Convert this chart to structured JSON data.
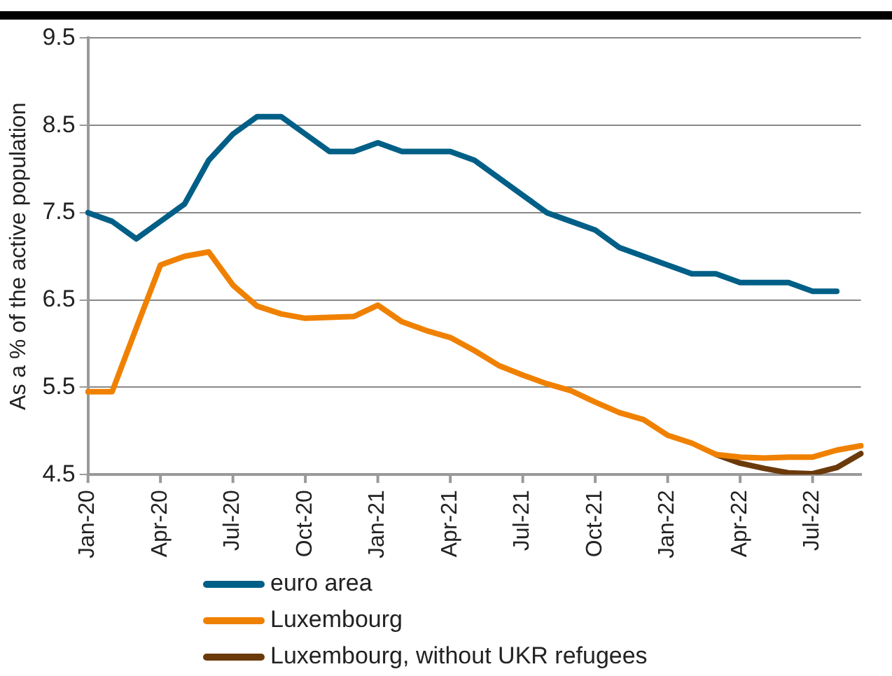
{
  "chart_data": {
    "type": "line",
    "ylabel": "As a % of the active population",
    "categories": [
      "Jan-20",
      null,
      null,
      "Apr-20",
      null,
      null,
      "Jul-20",
      null,
      null,
      "Oct-20",
      null,
      null,
      "Jan-21",
      null,
      null,
      "Apr-21",
      null,
      null,
      "Jul-21",
      null,
      null,
      "Oct-21",
      null,
      null,
      "Jan-22",
      null,
      null,
      "Apr-22",
      null,
      null,
      "Jul-22",
      null,
      null
    ],
    "series": [
      {
        "name": "euro area",
        "color": "#005f87",
        "values": [
          7.5,
          7.4,
          7.2,
          7.4,
          7.6,
          8.1,
          8.4,
          8.6,
          8.6,
          8.4,
          8.2,
          8.2,
          8.3,
          8.2,
          8.2,
          8.2,
          8.1,
          7.9,
          7.7,
          7.5,
          7.4,
          7.3,
          7.1,
          7.0,
          6.9,
          6.8,
          6.8,
          6.7,
          6.7,
          6.7,
          6.6,
          6.6,
          null
        ]
      },
      {
        "name": "Luxembourg",
        "color": "#f08100",
        "values": [
          5.45,
          5.45,
          6.18,
          6.9,
          7.0,
          7.05,
          6.67,
          6.43,
          6.34,
          6.29,
          6.3,
          6.31,
          6.44,
          6.25,
          6.15,
          6.07,
          5.92,
          5.75,
          5.64,
          5.54,
          5.46,
          5.33,
          5.21,
          5.13,
          4.95,
          4.86,
          4.73,
          4.7,
          4.69,
          4.7,
          4.7,
          4.78,
          4.83
        ]
      },
      {
        "name": "Luxembourg, without UKR refugees",
        "color": "#6b3a0b",
        "values": [
          null,
          null,
          null,
          null,
          null,
          null,
          null,
          null,
          null,
          null,
          null,
          null,
          null,
          null,
          null,
          null,
          null,
          null,
          null,
          null,
          null,
          null,
          null,
          null,
          null,
          null,
          4.73,
          4.63,
          4.57,
          4.52,
          4.51,
          4.58,
          4.74
        ]
      }
    ],
    "ylim": [
      4.5,
      9.5
    ],
    "yticks": [
      4.5,
      5.5,
      6.5,
      7.5,
      8.5,
      9.5
    ],
    "grid": "y",
    "legend": "bottom",
    "marker": "none",
    "line_style": "solid"
  }
}
